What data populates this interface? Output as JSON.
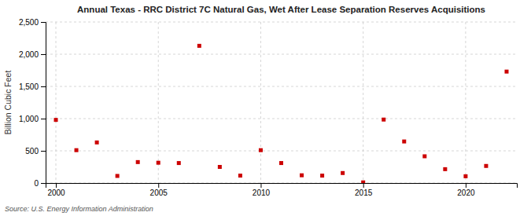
{
  "chart_data": {
    "type": "scatter",
    "title": "Annual Texas - RRC District 7C Natural Gas, Wet After Lease Separation Reserves Acquisitions",
    "ylabel": "Billion Cubic Feet",
    "source": "Source: U.S. Energy Information Administration",
    "x": [
      2000,
      2001,
      2002,
      2003,
      2004,
      2005,
      2006,
      2007,
      2008,
      2009,
      2010,
      2011,
      2012,
      2013,
      2014,
      2015,
      2016,
      2017,
      2018,
      2019,
      2020,
      2021,
      2022
    ],
    "values": [
      980,
      510,
      630,
      110,
      325,
      315,
      310,
      2130,
      250,
      115,
      510,
      310,
      120,
      115,
      155,
      10,
      985,
      645,
      415,
      215,
      105,
      265,
      1730
    ],
    "color": "#cc0000",
    "marker": "square",
    "xlim": [
      1999.5,
      2022.5
    ],
    "xticks": [
      2000,
      2005,
      2010,
      2015,
      2020
    ],
    "ylim": [
      0,
      2500
    ],
    "yticks": [
      0,
      500,
      {
        "value": 1000,
        "label": "1,000"
      },
      {
        "value": 1500,
        "label": "1,500"
      },
      {
        "value": 2000,
        "label": "2,000"
      },
      {
        "value": 2500,
        "label": "2,500"
      }
    ],
    "grid": true
  }
}
